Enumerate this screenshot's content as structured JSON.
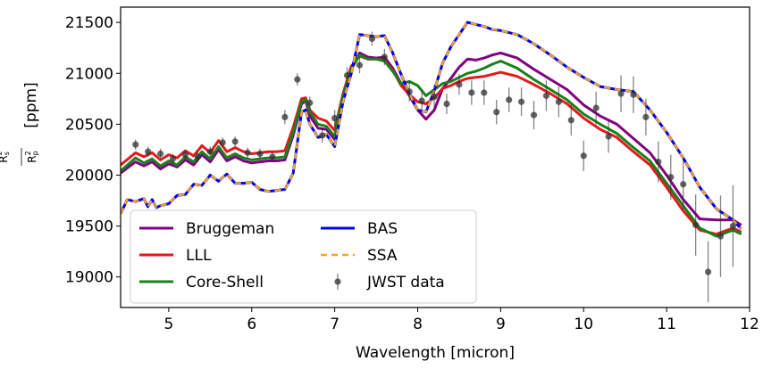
{
  "chart_data": {
    "type": "line",
    "xlabel": "Wavelength [micron]",
    "ylabel_main": "R",
    "ylabel_unit": "[ppm]",
    "xlim": [
      4.42,
      12.0
    ],
    "ylim": [
      18700,
      21650
    ],
    "xticks": [
      5,
      6,
      7,
      8,
      9,
      10,
      11,
      12
    ],
    "yticks": [
      19000,
      19500,
      20000,
      20500,
      21000,
      21500
    ],
    "legend_position": "lower-left",
    "series": [
      {
        "name": "Bruggeman",
        "color": "#800080",
        "dash": "solid",
        "x": [
          4.42,
          4.6,
          4.7,
          4.8,
          4.9,
          5.0,
          5.1,
          5.2,
          5.3,
          5.4,
          5.5,
          5.6,
          5.7,
          5.8,
          5.9,
          6.0,
          6.1,
          6.2,
          6.3,
          6.4,
          6.5,
          6.6,
          6.65,
          6.7,
          6.8,
          6.9,
          7.0,
          7.1,
          7.2,
          7.3,
          7.4,
          7.5,
          7.6,
          7.7,
          7.8,
          7.9,
          8.0,
          8.1,
          8.2,
          8.3,
          8.4,
          8.5,
          8.6,
          8.7,
          8.8,
          8.9,
          9.0,
          9.2,
          9.4,
          9.6,
          9.8,
          10.0,
          10.2,
          10.4,
          10.6,
          10.8,
          11.0,
          11.2,
          11.4,
          11.6,
          11.8,
          11.9
        ],
        "y": [
          20020,
          20130,
          20090,
          20130,
          20060,
          20110,
          20080,
          20150,
          20100,
          20200,
          20130,
          20250,
          20140,
          20180,
          20140,
          20120,
          20130,
          20140,
          20140,
          20150,
          20390,
          20700,
          20730,
          20580,
          20460,
          20450,
          20350,
          20760,
          21040,
          21200,
          21160,
          21150,
          21160,
          21050,
          20900,
          20780,
          20640,
          20550,
          20640,
          20850,
          20950,
          21060,
          21140,
          21130,
          21150,
          21180,
          21200,
          21150,
          21040,
          20940,
          20840,
          20690,
          20580,
          20500,
          20360,
          20220,
          20000,
          19760,
          19570,
          19560,
          19560,
          19510
        ]
      },
      {
        "name": "LLL",
        "color": "#e31a1c",
        "dash": "solid",
        "x": [
          4.42,
          4.6,
          4.7,
          4.8,
          4.9,
          5.0,
          5.1,
          5.2,
          5.3,
          5.4,
          5.5,
          5.6,
          5.7,
          5.8,
          5.9,
          6.0,
          6.1,
          6.2,
          6.3,
          6.4,
          6.5,
          6.6,
          6.65,
          6.7,
          6.8,
          6.9,
          7.0,
          7.1,
          7.2,
          7.3,
          7.4,
          7.5,
          7.6,
          7.7,
          7.8,
          7.9,
          8.0,
          8.1,
          8.2,
          8.3,
          8.4,
          8.5,
          8.6,
          8.7,
          8.8,
          8.9,
          9.0,
          9.2,
          9.4,
          9.6,
          9.8,
          10.0,
          10.2,
          10.4,
          10.6,
          10.8,
          11.0,
          11.2,
          11.4,
          11.6,
          11.8,
          11.9
        ],
        "y": [
          20100,
          20220,
          20180,
          20220,
          20150,
          20200,
          20170,
          20240,
          20190,
          20290,
          20220,
          20340,
          20230,
          20270,
          20230,
          20210,
          20220,
          20230,
          20230,
          20240,
          20470,
          20750,
          20760,
          20640,
          20560,
          20530,
          20440,
          20800,
          21070,
          21170,
          21140,
          21140,
          21130,
          21030,
          20880,
          20790,
          20720,
          20700,
          20760,
          20850,
          20880,
          20920,
          20950,
          20960,
          20970,
          20990,
          21010,
          20970,
          20890,
          20800,
          20700,
          20560,
          20450,
          20370,
          20230,
          20100,
          19880,
          19650,
          19460,
          19420,
          19480,
          19440
        ]
      },
      {
        "name": "Core-Shell",
        "color": "#1a801a",
        "dash": "solid",
        "x": [
          4.42,
          4.6,
          4.7,
          4.8,
          4.9,
          5.0,
          5.1,
          5.2,
          5.3,
          5.4,
          5.5,
          5.6,
          5.7,
          5.8,
          5.9,
          6.0,
          6.1,
          6.2,
          6.3,
          6.4,
          6.5,
          6.6,
          6.65,
          6.7,
          6.8,
          6.9,
          7.0,
          7.1,
          7.2,
          7.3,
          7.4,
          7.5,
          7.6,
          7.7,
          7.8,
          7.9,
          8.0,
          8.1,
          8.2,
          8.3,
          8.4,
          8.5,
          8.6,
          8.7,
          8.8,
          8.9,
          9.0,
          9.2,
          9.4,
          9.6,
          9.8,
          10.0,
          10.2,
          10.4,
          10.6,
          10.8,
          11.0,
          11.2,
          11.4,
          11.6,
          11.8,
          11.9
        ],
        "y": [
          20040,
          20170,
          20120,
          20160,
          20090,
          20140,
          20100,
          20180,
          20130,
          20230,
          20160,
          20280,
          20170,
          20210,
          20170,
          20150,
          20160,
          20170,
          20170,
          20180,
          20420,
          20720,
          20740,
          20620,
          20500,
          20480,
          20380,
          20780,
          21040,
          21180,
          21140,
          21140,
          21120,
          21020,
          20900,
          20920,
          20880,
          20780,
          20840,
          20900,
          20920,
          20960,
          21000,
          21020,
          21050,
          21090,
          21120,
          21050,
          20940,
          20840,
          20740,
          20600,
          20500,
          20410,
          20270,
          20140,
          19920,
          19700,
          19480,
          19400,
          19460,
          19420
        ]
      },
      {
        "name": "BAS",
        "color": "#0000ee",
        "dash": "solid",
        "x": [
          4.42,
          4.5,
          4.6,
          4.7,
          4.75,
          4.8,
          4.85,
          4.9,
          5.0,
          5.1,
          5.2,
          5.3,
          5.4,
          5.5,
          5.6,
          5.7,
          5.8,
          5.9,
          6.0,
          6.1,
          6.2,
          6.3,
          6.4,
          6.5,
          6.6,
          6.65,
          6.7,
          6.8,
          6.9,
          7.0,
          7.1,
          7.2,
          7.3,
          7.4,
          7.5,
          7.6,
          7.7,
          7.8,
          7.9,
          8.0,
          8.1,
          8.2,
          8.3,
          8.4,
          8.5,
          8.6,
          8.7,
          8.8,
          8.9,
          9.0,
          9.2,
          9.4,
          9.6,
          9.8,
          10.0,
          10.2,
          10.4,
          10.6,
          10.8,
          11.0,
          11.2,
          11.4,
          11.6,
          11.8,
          11.9
        ],
        "y": [
          19620,
          19760,
          19740,
          19770,
          19690,
          19760,
          19680,
          19700,
          19720,
          19800,
          19810,
          19910,
          19900,
          20000,
          19940,
          20010,
          19920,
          19920,
          19930,
          19860,
          19840,
          19850,
          19860,
          20020,
          20620,
          20640,
          20500,
          20370,
          20400,
          20280,
          20720,
          21000,
          21380,
          21370,
          21360,
          21370,
          21200,
          20990,
          20800,
          20640,
          20620,
          20830,
          21100,
          21260,
          21380,
          21500,
          21480,
          21460,
          21430,
          21420,
          21380,
          21290,
          21180,
          21060,
          20960,
          20870,
          20840,
          20820,
          20640,
          20420,
          20170,
          19880,
          19670,
          19560,
          19470
        ]
      },
      {
        "name": "SSA",
        "color": "#f5a623",
        "dash": "dashed",
        "x": [
          4.42,
          4.5,
          4.6,
          4.7,
          4.75,
          4.8,
          4.85,
          4.9,
          5.0,
          5.1,
          5.2,
          5.3,
          5.4,
          5.5,
          5.6,
          5.7,
          5.8,
          5.9,
          6.0,
          6.1,
          6.2,
          6.3,
          6.4,
          6.5,
          6.6,
          6.65,
          6.7,
          6.8,
          6.9,
          7.0,
          7.1,
          7.2,
          7.3,
          7.4,
          7.5,
          7.6,
          7.7,
          7.8,
          7.9,
          8.0,
          8.1,
          8.2,
          8.3,
          8.4,
          8.5,
          8.6,
          8.7,
          8.8,
          8.9,
          9.0,
          9.2,
          9.4,
          9.6,
          9.8,
          10.0,
          10.2,
          10.4,
          10.6,
          10.8,
          11.0,
          11.2,
          11.4,
          11.6,
          11.8,
          11.9
        ],
        "y": [
          19620,
          19760,
          19740,
          19770,
          19690,
          19760,
          19680,
          19700,
          19720,
          19800,
          19810,
          19910,
          19900,
          20000,
          19940,
          20010,
          19920,
          19920,
          19930,
          19860,
          19840,
          19850,
          19860,
          20020,
          20620,
          20640,
          20500,
          20370,
          20400,
          20280,
          20720,
          21000,
          21380,
          21370,
          21360,
          21370,
          21200,
          20990,
          20800,
          20640,
          20620,
          20830,
          21100,
          21260,
          21380,
          21500,
          21480,
          21460,
          21430,
          21420,
          21380,
          21290,
          21180,
          21060,
          20960,
          20870,
          20840,
          20820,
          20640,
          20420,
          20170,
          19880,
          19670,
          19560,
          19470
        ]
      }
    ],
    "observations": {
      "name": "JWST data",
      "color": "#333333",
      "x": [
        4.6,
        4.75,
        4.9,
        5.05,
        5.2,
        5.35,
        5.5,
        5.65,
        5.8,
        5.95,
        6.1,
        6.25,
        6.4,
        6.55,
        6.7,
        6.85,
        7.0,
        7.15,
        7.3,
        7.45,
        7.6,
        7.9,
        8.05,
        8.2,
        8.35,
        8.5,
        8.65,
        8.8,
        8.95,
        9.1,
        9.25,
        9.4,
        9.55,
        9.7,
        9.85,
        10.0,
        10.15,
        10.3,
        10.45,
        10.6,
        10.75,
        10.9,
        11.05,
        11.2,
        11.35,
        11.5,
        11.65,
        11.8
      ],
      "y": [
        20300,
        20230,
        20210,
        20160,
        20200,
        20180,
        20230,
        20320,
        20330,
        20220,
        20210,
        20180,
        20570,
        20940,
        20710,
        20390,
        20560,
        20980,
        21080,
        21340,
        21160,
        20820,
        20730,
        20770,
        20700,
        20890,
        20810,
        20810,
        20620,
        20740,
        20720,
        20590,
        20780,
        20720,
        20540,
        20190,
        20660,
        20380,
        20800,
        20790,
        20570,
        20130,
        19980,
        19910,
        19510,
        19050,
        19400,
        19500
      ],
      "err": [
        50,
        50,
        50,
        50,
        50,
        50,
        50,
        50,
        50,
        50,
        50,
        50,
        70,
        60,
        60,
        70,
        80,
        80,
        80,
        70,
        80,
        100,
        100,
        120,
        100,
        100,
        120,
        120,
        120,
        120,
        140,
        140,
        150,
        150,
        150,
        150,
        160,
        160,
        180,
        180,
        180,
        200,
        220,
        260,
        300,
        300,
        400,
        400
      ]
    }
  }
}
